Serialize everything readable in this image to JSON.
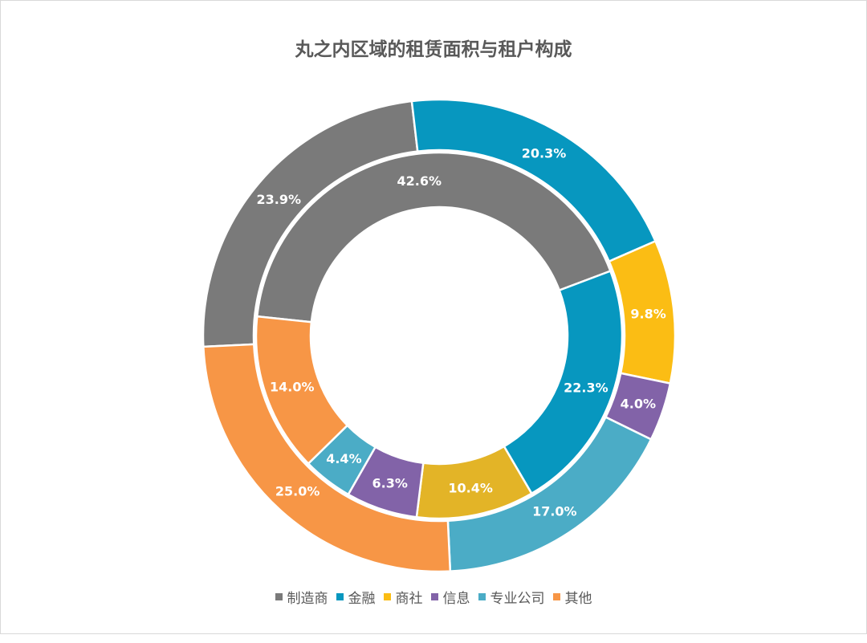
{
  "chart_data": {
    "type": "donut",
    "title": "丸之内区域的租赁面积与租户构成",
    "categories": [
      "制造商",
      "金融",
      "商社",
      "信息",
      "专业公司",
      "其他"
    ],
    "colors": [
      "#7a7a7a",
      "#0797bf",
      "#fbbd14",
      "#8263a8",
      "#4bacc6",
      "#f79646"
    ],
    "series": [
      {
        "ring": "inner",
        "values": [
          42.6,
          22.3,
          10.4,
          6.3,
          4.4,
          14.0
        ],
        "labels": [
          "42.6%",
          "22.3%",
          "10.4%",
          "6.3%",
          "4.4%",
          "14.0%"
        ],
        "colors": [
          "#7a7a7a",
          "#0797bf",
          "#e3b427",
          "#8263a8",
          "#4bacc6",
          "#f79646"
        ]
      },
      {
        "ring": "outer",
        "values": [
          23.9,
          20.3,
          9.8,
          4.0,
          17.0,
          25.0
        ],
        "labels": [
          "23.9%",
          "20.3%",
          "9.8%",
          "4.0%",
          "17.0%",
          "25.0%"
        ],
        "colors": [
          "#7a7a7a",
          "#0797bf",
          "#fbbd14",
          "#8263a8",
          "#4bacc6",
          "#f79646"
        ]
      }
    ],
    "legend_position": "bottom"
  }
}
